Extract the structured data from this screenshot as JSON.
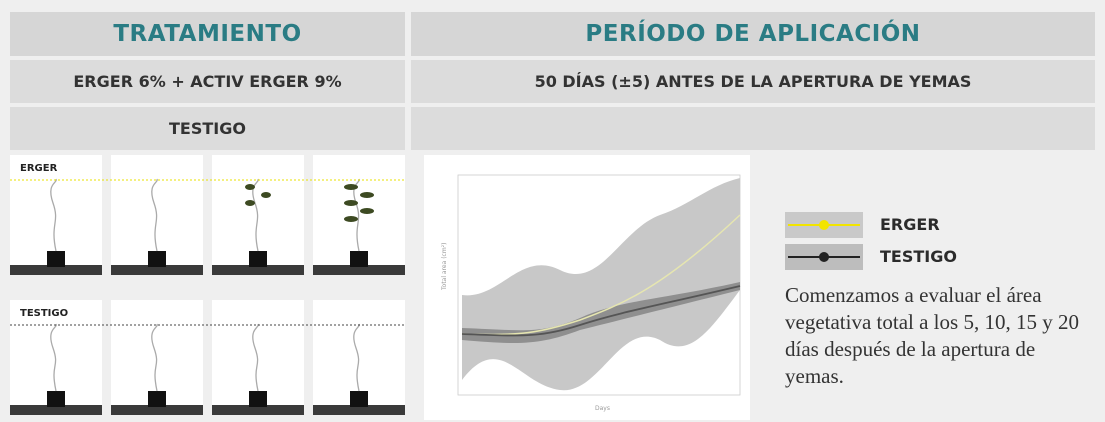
{
  "header": {
    "columns": [
      "TRATAMIENTO",
      "PERÍODO DE APLICACIÓN"
    ]
  },
  "table": {
    "rows": [
      [
        "ERGER 6% + ACTIV ERGER 9%",
        "50 DÍAS (±5) ANTES DE LA APERTURA DE YEMAS"
      ],
      [
        "TESTIGO"
      ]
    ]
  },
  "photos": {
    "rows": [
      {
        "label": "ERGER"
      },
      {
        "label": "TESTIGO"
      }
    ]
  },
  "legend": {
    "items": [
      "ERGER",
      "TESTIGO"
    ]
  },
  "description": "Comenzamos a evaluar el área vegetativa total a los 5, 10, 15 y 20 días después de la apertura de yemas."
}
